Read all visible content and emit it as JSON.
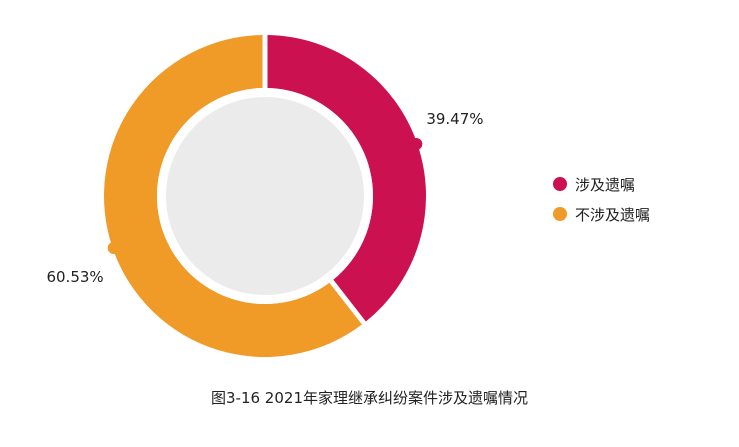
{
  "chart_data": {
    "type": "pie",
    "title": "图3-16  2021年家理继承纠纷案件涉及遗嘱情况",
    "categories": [
      "涉及遗嘱",
      "不涉及遗嘱"
    ],
    "values": [
      39.47,
      60.53
    ],
    "value_labels": [
      "39.47%",
      "60.53%"
    ],
    "colors": [
      "#cc1150",
      "#f09a28"
    ],
    "center_color": "#ebebeb",
    "legend_position": "right"
  }
}
